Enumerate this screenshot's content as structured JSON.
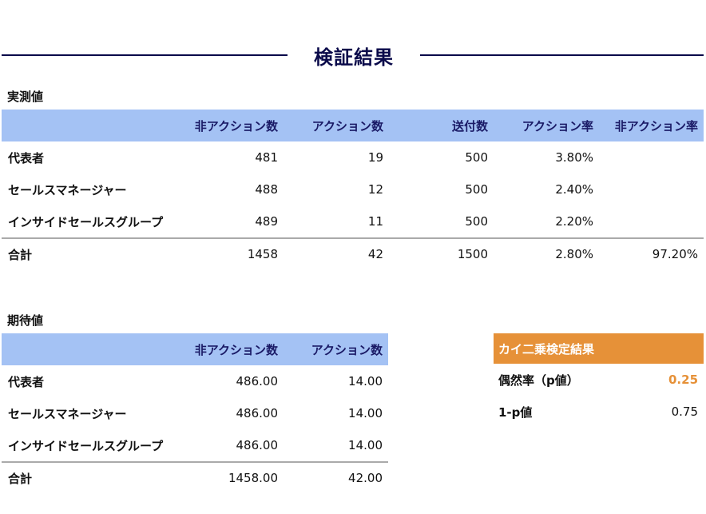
{
  "title": "検証結果",
  "measured": {
    "label": "実測値",
    "headers": [
      "",
      "非アクション数",
      "アクション数",
      "送付数",
      "アクション率",
      "非アクション率"
    ],
    "rows": [
      {
        "label": "代表者",
        "non_action": "481",
        "action": "19",
        "sent": "500",
        "action_rate": "3.80%",
        "non_action_rate": ""
      },
      {
        "label": "セールスマネージャー",
        "non_action": "488",
        "action": "12",
        "sent": "500",
        "action_rate": "2.40%",
        "non_action_rate": ""
      },
      {
        "label": "インサイドセールスグループ",
        "non_action": "489",
        "action": "11",
        "sent": "500",
        "action_rate": "2.20%",
        "non_action_rate": ""
      }
    ],
    "total": {
      "label": "合計",
      "non_action": "1458",
      "action": "42",
      "sent": "1500",
      "action_rate": "2.80%",
      "non_action_rate": "97.20%"
    }
  },
  "expected": {
    "label": "期待値",
    "headers": [
      "",
      "非アクション数",
      "アクション数"
    ],
    "rows": [
      {
        "label": "代表者",
        "non_action": "486.00",
        "action": "14.00"
      },
      {
        "label": "セールスマネージャー",
        "non_action": "486.00",
        "action": "14.00"
      },
      {
        "label": "インサイドセールスグループ",
        "non_action": "486.00",
        "action": "14.00"
      }
    ],
    "total": {
      "label": "合計",
      "non_action": "1458.00",
      "action": "42.00"
    }
  },
  "chi_square": {
    "header": "カイ二乗検定結果",
    "p_value_label": "偶然率（p値）",
    "p_value": "0.25",
    "one_minus_p_label": "1-p値",
    "one_minus_p": "0.75",
    "highlight_color": "#e69138"
  }
}
